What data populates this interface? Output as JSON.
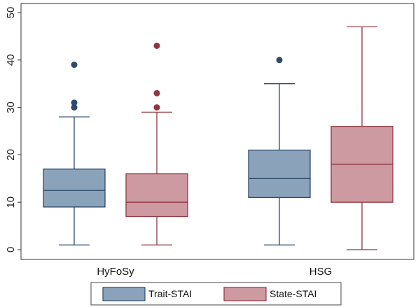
{
  "chart_data": {
    "type": "box",
    "title": "",
    "xlabel": "",
    "ylabel": "",
    "ylim": [
      0,
      50
    ],
    "yticks": [
      0,
      10,
      20,
      30,
      40,
      50
    ],
    "grid": false,
    "legend_position": "bottom",
    "groups": [
      "HyFoSy",
      "HSG"
    ],
    "series": [
      {
        "name": "Trait-STAI",
        "color": "#8aa2ba",
        "line_color": "#2e4b6a",
        "boxes": [
          {
            "group": "HyFoSy",
            "min": 1,
            "q1": 9,
            "median": 12.5,
            "q3": 17,
            "max": 28,
            "outliers": [
              30,
              31,
              39
            ]
          },
          {
            "group": "HSG",
            "min": 1,
            "q1": 11,
            "median": 15,
            "q3": 21,
            "max": 35,
            "outliers": [
              40
            ]
          }
        ]
      },
      {
        "name": "State-STAI",
        "color": "#cd9aa1",
        "line_color": "#8f3640",
        "boxes": [
          {
            "group": "HyFoSy",
            "min": 1,
            "q1": 7,
            "median": 10,
            "q3": 16,
            "max": 29,
            "outliers": [
              30,
              33,
              43
            ]
          },
          {
            "group": "HSG",
            "min": 0,
            "q1": 10,
            "median": 18,
            "q3": 26,
            "max": 47,
            "outliers": []
          }
        ]
      }
    ]
  }
}
